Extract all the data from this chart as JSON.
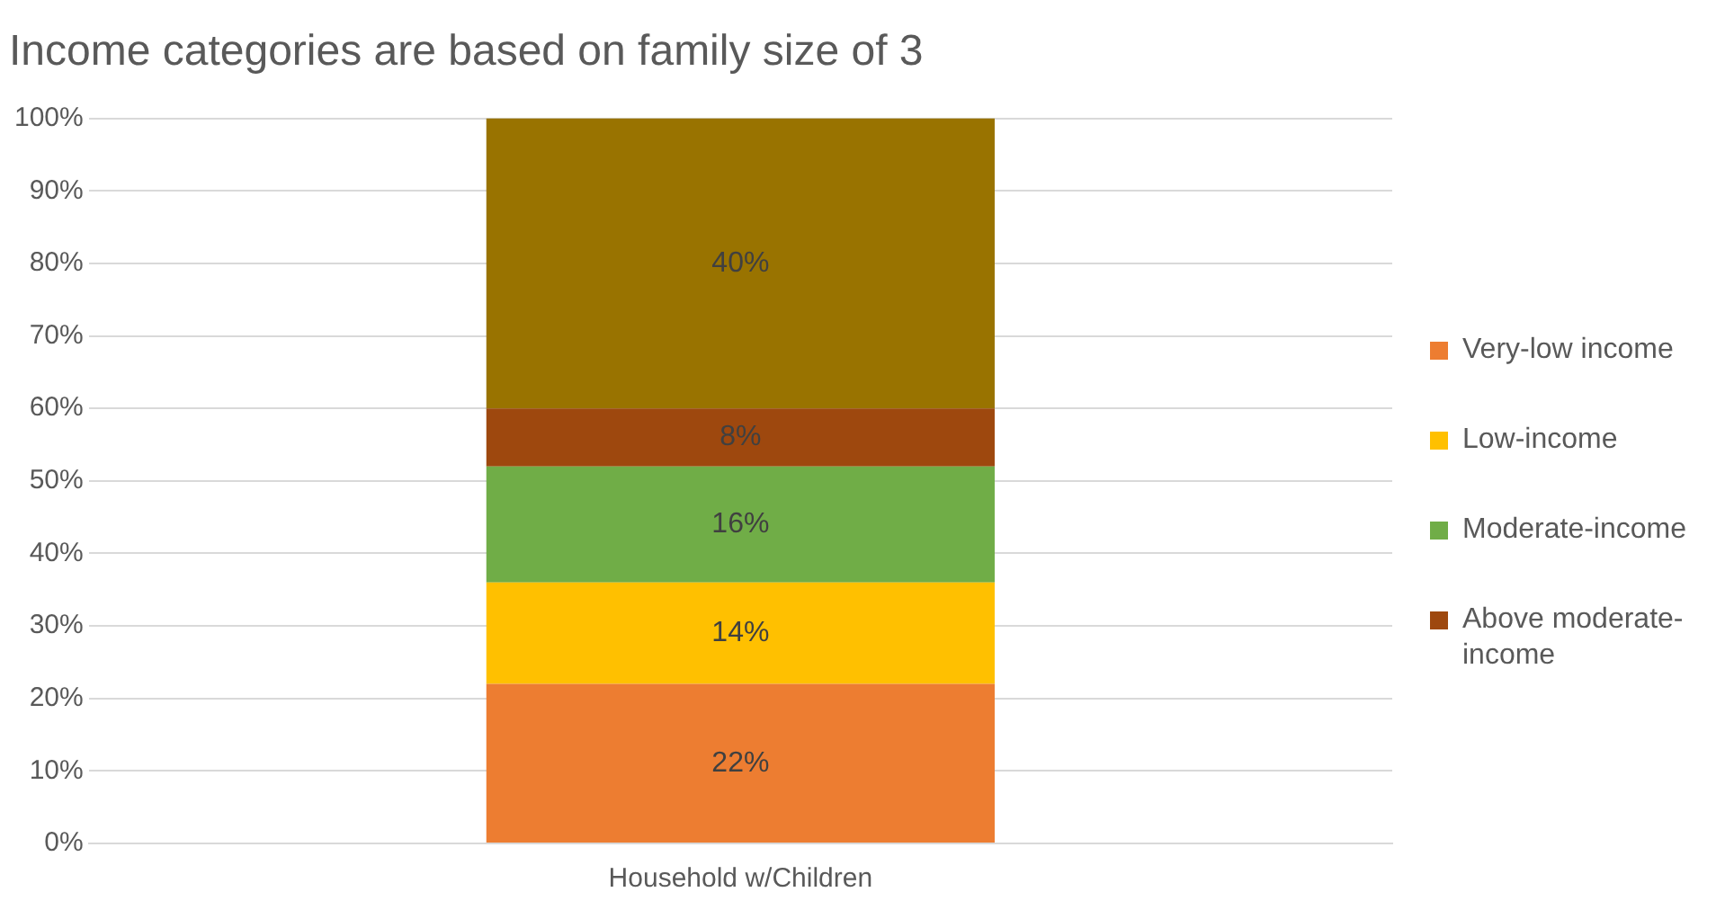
{
  "chart_data": {
    "type": "bar",
    "title": "Income categories are based on family size of 3",
    "categories": [
      "Household w/Children"
    ],
    "stacked": true,
    "series": [
      {
        "name": "Very-low income",
        "color": "#ed7d31",
        "values": [
          22
        ],
        "value_labels": [
          "22%"
        ]
      },
      {
        "name": "Low-income",
        "color": "#ffc000",
        "values": [
          14
        ],
        "value_labels": [
          "14%"
        ]
      },
      {
        "name": "Moderate-income",
        "color": "#70ad47",
        "values": [
          16
        ],
        "value_labels": [
          "16%"
        ]
      },
      {
        "name": "Above moderate-income",
        "color": "#9e480e",
        "values": [
          8
        ],
        "value_labels": [
          "8%"
        ]
      },
      {
        "color": "#997300",
        "values": [
          40
        ],
        "value_labels": [
          "40%"
        ]
      }
    ],
    "ylim": [
      0,
      100
    ],
    "yticks": [
      {
        "value": 0,
        "label": "0%"
      },
      {
        "value": 10,
        "label": "10%"
      },
      {
        "value": 20,
        "label": "20%"
      },
      {
        "value": 30,
        "label": "30%"
      },
      {
        "value": 40,
        "label": "40%"
      },
      {
        "value": 50,
        "label": "50%"
      },
      {
        "value": 60,
        "label": "60%"
      },
      {
        "value": 70,
        "label": "70%"
      },
      {
        "value": 80,
        "label": "80%"
      },
      {
        "value": 90,
        "label": "90%"
      },
      {
        "value": 100,
        "label": "100%"
      }
    ],
    "grid": "y",
    "legend": "right"
  }
}
